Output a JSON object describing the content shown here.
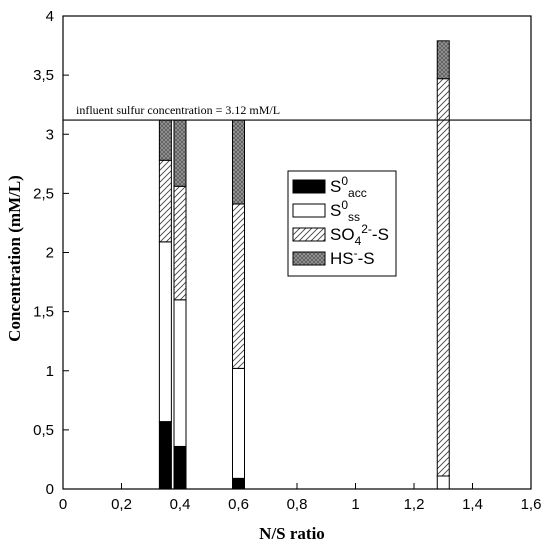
{
  "chart_data": {
    "type": "bar",
    "stacked": true,
    "xlabel": "N/S ratio",
    "ylabel": "Concentration (mM/L)",
    "xlim": [
      0,
      1.6
    ],
    "ylim": [
      0,
      4
    ],
    "xticks": [
      "0",
      "0,2",
      "0,4",
      "0,6",
      "0,8",
      "1",
      "1,2",
      "1,4",
      "1,6"
    ],
    "yticks": [
      "0",
      "0,5",
      "1",
      "1,5",
      "2",
      "2,5",
      "3",
      "3,5",
      "4"
    ],
    "x": [
      0.35,
      0.4,
      0.6,
      1.3
    ],
    "series": [
      {
        "key": "S0acc",
        "label_main": "S",
        "label_sup": "0",
        "label_sub": "acc",
        "label_tail": "",
        "values": [
          0.57,
          0.36,
          0.09,
          0.0
        ]
      },
      {
        "key": "S0ss",
        "label_main": "S",
        "label_sup": "0",
        "label_sub": "ss",
        "label_tail": "",
        "values": [
          1.52,
          1.24,
          0.93,
          0.11
        ]
      },
      {
        "key": "SO4",
        "label_main": "SO",
        "label_sub": "4",
        "label_sup": "2-",
        "label_tail": "-S",
        "values": [
          0.69,
          0.96,
          1.39,
          3.36
        ]
      },
      {
        "key": "HS",
        "label_main": "HS",
        "label_sup": "-",
        "label_sub": "",
        "label_tail": "-S",
        "values": [
          0.34,
          0.56,
          0.71,
          0.32
        ]
      }
    ],
    "reference_line": {
      "value": 3.12,
      "label": "influent sulfur concentration = 3.12 mM/L"
    },
    "grid": false,
    "legend_position": "center-right"
  }
}
